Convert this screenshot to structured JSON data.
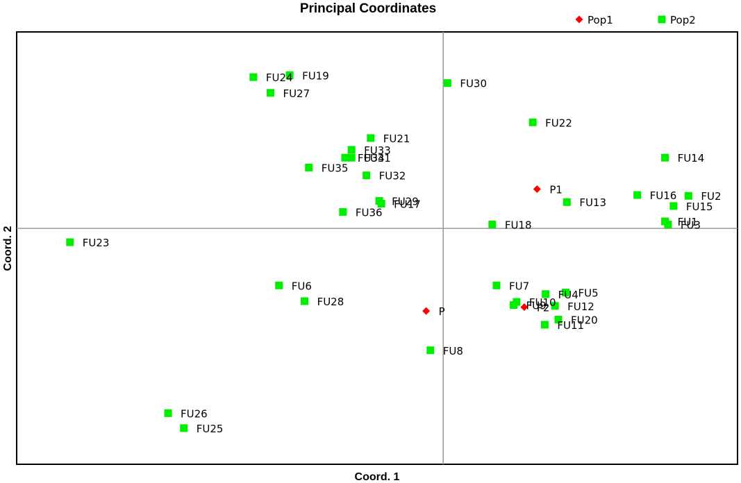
{
  "chart_data": {
    "type": "scatter",
    "title": "Principal Coordinates",
    "xlabel": "Coord. 1",
    "ylabel": "Coord. 2",
    "xlim": [
      -1.0,
      0.69
    ],
    "ylim": [
      -0.6,
      0.5
    ],
    "grid": false,
    "zero_lines": true,
    "legend_position": "top-right",
    "series": [
      {
        "name": "Pop1",
        "marker": "diamond",
        "color": "#ff0000",
        "points": [
          {
            "label": "P1",
            "x": 0.22,
            "y": 0.1
          },
          {
            "label": "P",
            "x": -0.04,
            "y": -0.21
          },
          {
            "label": "P2",
            "x": 0.19,
            "y": -0.2
          }
        ]
      },
      {
        "name": "Pop2",
        "marker": "square",
        "color": "#00ee00",
        "points": [
          {
            "label": "FU19",
            "x": -0.36,
            "y": 0.39
          },
          {
            "label": "FU24",
            "x": -0.445,
            "y": 0.385
          },
          {
            "label": "FU27",
            "x": -0.405,
            "y": 0.345
          },
          {
            "label": "FU30",
            "x": 0.01,
            "y": 0.37
          },
          {
            "label": "FU22",
            "x": 0.21,
            "y": 0.27
          },
          {
            "label": "FU21",
            "x": -0.17,
            "y": 0.23
          },
          {
            "label": "FU33",
            "x": -0.215,
            "y": 0.2
          },
          {
            "label": "FU34",
            "x": -0.23,
            "y": 0.18
          },
          {
            "label": "FU31",
            "x": -0.215,
            "y": 0.18
          },
          {
            "label": "FU35",
            "x": -0.315,
            "y": 0.155
          },
          {
            "label": "FU32",
            "x": -0.18,
            "y": 0.135
          },
          {
            "label": "FU14",
            "x": 0.52,
            "y": 0.18
          },
          {
            "label": "FU16",
            "x": 0.455,
            "y": 0.085
          },
          {
            "label": "FU2",
            "x": 0.575,
            "y": 0.083
          },
          {
            "label": "FU13",
            "x": 0.29,
            "y": 0.067
          },
          {
            "label": "FU15",
            "x": 0.54,
            "y": 0.057
          },
          {
            "label": "FU29",
            "x": -0.15,
            "y": 0.07
          },
          {
            "label": "FU17",
            "x": -0.145,
            "y": 0.063
          },
          {
            "label": "FU36",
            "x": -0.235,
            "y": 0.042
          },
          {
            "label": "FU1",
            "x": 0.52,
            "y": 0.018
          },
          {
            "label": "FU3",
            "x": 0.527,
            "y": 0.01
          },
          {
            "label": "FU18",
            "x": 0.115,
            "y": 0.01
          },
          {
            "label": "FU23",
            "x": -0.875,
            "y": -0.035
          },
          {
            "label": "FU6",
            "x": -0.385,
            "y": -0.145
          },
          {
            "label": "FU28",
            "x": -0.325,
            "y": -0.185
          },
          {
            "label": "FU7",
            "x": 0.125,
            "y": -0.145
          },
          {
            "label": "FU5",
            "x": 0.287,
            "y": -0.163
          },
          {
            "label": "FU4",
            "x": 0.24,
            "y": -0.167
          },
          {
            "label": "FU10",
            "x": 0.172,
            "y": -0.187
          },
          {
            "label": "FU9",
            "x": 0.165,
            "y": -0.195
          },
          {
            "label": "FU12",
            "x": 0.262,
            "y": -0.197
          },
          {
            "label": "FU20",
            "x": 0.27,
            "y": -0.232
          },
          {
            "label": "FU11",
            "x": 0.238,
            "y": -0.245
          },
          {
            "label": "FU8",
            "x": -0.03,
            "y": -0.31
          },
          {
            "label": "FU26",
            "x": -0.645,
            "y": -0.47
          },
          {
            "label": "FU25",
            "x": -0.608,
            "y": -0.508
          }
        ]
      }
    ]
  }
}
